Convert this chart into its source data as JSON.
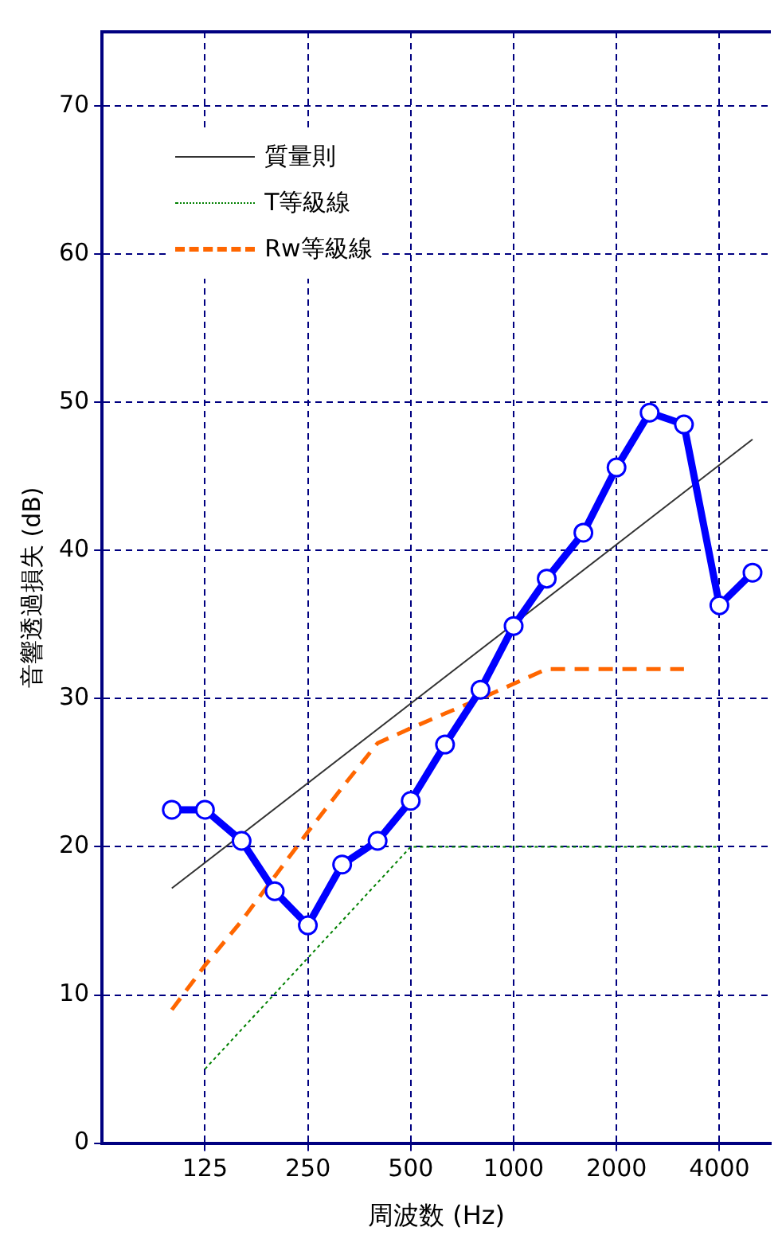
{
  "chart_data": {
    "type": "line",
    "xlabel": "周波数 (Hz)",
    "ylabel": "音響透過損失 (dB)",
    "log": "x",
    "xlim": [
      62.5,
      5657
    ],
    "xticks": [
      125,
      250,
      500,
      1000,
      2000,
      4000
    ],
    "ylim": [
      0,
      75
    ],
    "yticks": [
      0,
      10,
      20,
      30,
      40,
      50,
      60,
      70
    ],
    "grid": true,
    "legend": "top left",
    "series": [
      {
        "color": "#0000ff",
        "marker": "circle",
        "line_style": "solid",
        "x": [
          100,
          125,
          160,
          200,
          250,
          315,
          400,
          500,
          630,
          800,
          1000,
          1250,
          1600,
          2000,
          2500,
          3150,
          4000,
          5000
        ],
        "values": [
          22.5,
          22.5,
          20.4,
          17.0,
          14.7,
          18.8,
          20.4,
          23.1,
          26.9,
          30.6,
          34.9,
          38.1,
          41.2,
          45.6,
          49.3,
          48.5,
          36.3,
          38.5
        ]
      },
      {
        "name": "質量則",
        "color": "#333333",
        "marker": "none",
        "line_style": "solid",
        "x": [
          100,
          5000
        ],
        "values": [
          17.2,
          47.5
        ]
      },
      {
        "name": "T等級線",
        "color": "#008000",
        "marker": "none",
        "line_style": "dotted",
        "x": [
          125,
          500,
          4000
        ],
        "values": [
          5,
          20,
          20
        ]
      },
      {
        "name": "Rw等級線",
        "color": "#ff6600",
        "marker": "none",
        "line_style": "dashed",
        "x": [
          100,
          125,
          160,
          200,
          250,
          315,
          400,
          500,
          630,
          800,
          1000,
          1250,
          3150
        ],
        "values": [
          9,
          12,
          15,
          18,
          21,
          24,
          27,
          28,
          29,
          30,
          31,
          32,
          32
        ]
      }
    ]
  }
}
